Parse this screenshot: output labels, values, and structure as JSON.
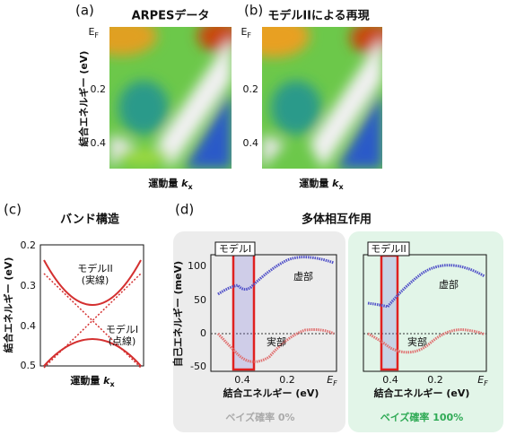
{
  "panels": [
    {
      "label": "(a)",
      "title": "ARPESデータ",
      "yticks": [
        {
          "main": "E",
          "sub": "F"
        },
        "0.2",
        "0.4"
      ],
      "ylabel": "結合エネルギー (eV)",
      "xlabel": {
        "text": "運動量 ",
        "var": "k",
        "sub": "x"
      }
    },
    {
      "label": "(b)",
      "title": "モデルIIによる再現",
      "yticks": [
        {
          "main": "E",
          "sub": "F"
        },
        "0.2",
        "0.4"
      ],
      "xlabel": {
        "text": "運動量 ",
        "var": "k",
        "sub": "x"
      }
    },
    {
      "label": "(c)",
      "title": "バンド構造",
      "yticks": [
        "0.2",
        "0.3",
        "0.4",
        "0.5"
      ],
      "ylabel": "結合エネルギー (eV)",
      "xlabel": {
        "text": "運動量 ",
        "var": "k",
        "sub": "x"
      },
      "annotations": [
        "モデルII",
        "(実線)",
        "モデルI",
        "(点線)"
      ]
    },
    {
      "label": "(d)",
      "title": "多体相互作用",
      "ylabel": "自己エネルギー (meV)",
      "yticks": [
        "100",
        "50",
        "0",
        "-50"
      ],
      "xticks": [
        "0.4",
        "0.2",
        {
          "main": "E",
          "sub": "F"
        }
      ],
      "xlabel": "結合エネルギー (eV)",
      "subplots": [
        {
          "model": "モデルI",
          "imag": "虚部",
          "real": "実部",
          "caption": "ベイズ確率 0%"
        },
        {
          "model": "モデルII",
          "imag": "虚部",
          "real": "実部",
          "caption": "ベイズ確率 100%"
        }
      ]
    }
  ]
}
